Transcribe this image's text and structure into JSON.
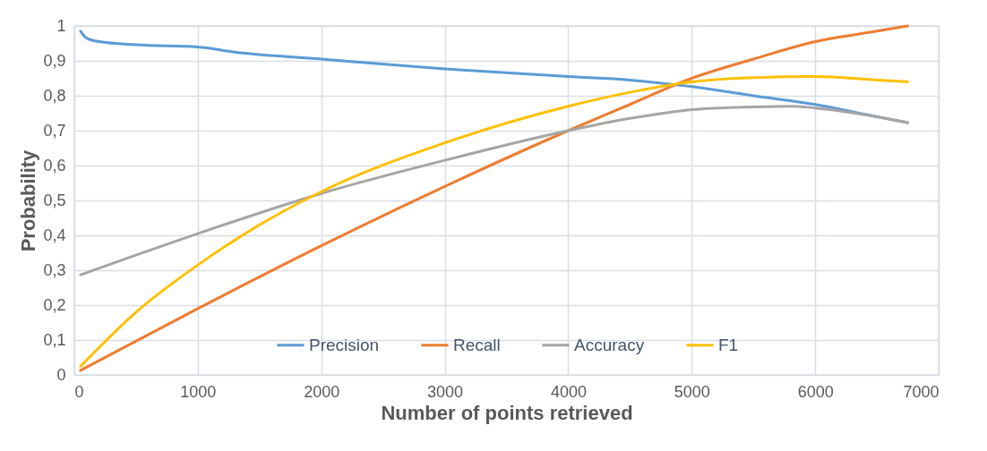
{
  "chart_data": {
    "type": "line",
    "xlabel": "Number of points retrieved",
    "ylabel": "Probability",
    "xlim": [
      0,
      7000
    ],
    "xticks": [
      0,
      1000,
      2000,
      3000,
      4000,
      5000,
      6000,
      7000
    ],
    "ylim": [
      0,
      1
    ],
    "yticks": [
      0,
      {
        "value": 0.1,
        "label": "0,1"
      },
      {
        "value": 0.2,
        "label": "0,2"
      },
      {
        "value": 0.3,
        "label": "0,3"
      },
      {
        "value": 0.4,
        "label": "0,4"
      },
      {
        "value": 0.5,
        "label": "0,5"
      },
      {
        "value": 0.6,
        "label": "0,6"
      },
      {
        "value": 0.7,
        "label": "0,7"
      },
      {
        "value": 0.8,
        "label": "0,8"
      },
      {
        "value": 0.9,
        "label": "0,9"
      },
      1
    ],
    "grid": true,
    "legend": "bottom",
    "line_style": "solid",
    "series": [
      {
        "name": "Precision",
        "color": "#5b9bd5",
        "x": [
          50,
          100,
          200,
          500,
          1000,
          1300,
          2000,
          3000,
          4000,
          4500,
          5000,
          5500,
          6000,
          6500,
          6750
        ],
        "values": [
          0.985,
          0.965,
          0.955,
          0.946,
          0.94,
          0.925,
          0.905,
          0.877,
          0.855,
          0.845,
          0.826,
          0.8,
          0.775,
          0.74,
          0.723
        ]
      },
      {
        "name": "Recall",
        "color": "#ed7d31",
        "x": [
          50,
          1000,
          2000,
          3000,
          4000,
          4500,
          5000,
          5500,
          6000,
          6500,
          6750
        ],
        "values": [
          0.013,
          0.19,
          0.37,
          0.54,
          0.7,
          0.775,
          0.85,
          0.905,
          0.955,
          0.985,
          1.0
        ]
      },
      {
        "name": "Accuracy",
        "color": "#a5a5a5",
        "x": [
          50,
          1000,
          2000,
          3000,
          4000,
          4500,
          5000,
          5500,
          5800,
          6000,
          6500,
          6750
        ],
        "values": [
          0.287,
          0.405,
          0.52,
          0.615,
          0.7,
          0.735,
          0.76,
          0.768,
          0.77,
          0.765,
          0.74,
          0.723
        ]
      },
      {
        "name": "F1",
        "color": "#ffc000",
        "x": [
          50,
          500,
          1000,
          1500,
          2000,
          3000,
          4000,
          4500,
          5000,
          5500,
          6000,
          6500,
          6750
        ],
        "values": [
          0.025,
          0.18,
          0.315,
          0.43,
          0.525,
          0.665,
          0.77,
          0.81,
          0.84,
          0.852,
          0.855,
          0.845,
          0.84
        ]
      }
    ]
  }
}
